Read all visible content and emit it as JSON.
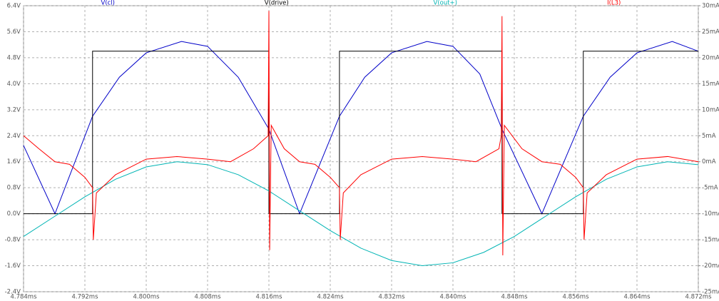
{
  "chart_data": {
    "type": "line",
    "xlim": [
      4.784,
      4.872
    ],
    "xticks": [
      {
        "value": 4.784,
        "label": "4.784ms"
      },
      {
        "value": 4.792,
        "label": "4.792ms"
      },
      {
        "value": 4.8,
        "label": "4.800ms"
      },
      {
        "value": 4.808,
        "label": "4.808ms"
      },
      {
        "value": 4.816,
        "label": "4.816ms"
      },
      {
        "value": 4.824,
        "label": "4.824ms"
      },
      {
        "value": 4.832,
        "label": "4.832ms"
      },
      {
        "value": 4.84,
        "label": "4.840ms"
      },
      {
        "value": 4.848,
        "label": "4.848ms"
      },
      {
        "value": 4.856,
        "label": "4.856ms"
      },
      {
        "value": 4.864,
        "label": "4.864ms"
      },
      {
        "value": 4.872,
        "label": "4.872ms"
      }
    ],
    "ylim": [
      -2.4,
      6.4
    ],
    "yticks": [
      {
        "value": 6.4,
        "label": "6.4V"
      },
      {
        "value": 5.6,
        "label": "5.6V"
      },
      {
        "value": 4.8,
        "label": "4.8V"
      },
      {
        "value": 4.0,
        "label": "4.0V"
      },
      {
        "value": 3.2,
        "label": "3.2V"
      },
      {
        "value": 2.4,
        "label": "2.4V"
      },
      {
        "value": 1.6,
        "label": "1.6V"
      },
      {
        "value": 0.8,
        "label": "0.8V"
      },
      {
        "value": 0,
        "label": "0.0V"
      },
      {
        "value": -0.8,
        "label": "-0.8V"
      },
      {
        "value": -1.6,
        "label": "-1.6V"
      },
      {
        "value": -2.4,
        "label": "-2.4V"
      }
    ],
    "y2lim": [
      -25,
      30
    ],
    "y2ticks": [
      {
        "value": 30,
        "label": "30mA"
      },
      {
        "value": 25,
        "label": "25mA"
      },
      {
        "value": 20,
        "label": "20mA"
      },
      {
        "value": 15,
        "label": "15mA"
      },
      {
        "value": 10,
        "label": "10mA"
      },
      {
        "value": 5,
        "label": "5mA"
      },
      {
        "value": 0,
        "label": "0mA"
      },
      {
        "value": -5,
        "label": "-5mA"
      },
      {
        "value": -10,
        "label": "-10mA"
      },
      {
        "value": -15,
        "label": "-15mA"
      },
      {
        "value": -20,
        "label": "-20mA"
      },
      {
        "value": -25,
        "label": "-25mA"
      }
    ],
    "grid": true,
    "series": [
      {
        "name": "V(cl)",
        "color": "#0000c8",
        "x": [
          4.784,
          4.7881,
          4.793,
          4.7965,
          4.8,
          4.8046,
          4.808,
          4.812,
          4.816,
          4.82,
          4.8252,
          4.8285,
          4.832,
          4.8366,
          4.84,
          4.8435,
          4.8464,
          4.8516,
          4.857,
          4.8605,
          4.864,
          4.8686,
          4.872
        ],
        "values": [
          2.1,
          0,
          3.0,
          4.2,
          4.95,
          5.3,
          5.15,
          4.2,
          2.6,
          0,
          3.0,
          4.2,
          4.95,
          5.3,
          5.15,
          4.3,
          2.6,
          0,
          3.0,
          4.2,
          4.95,
          5.3,
          5.0
        ]
      },
      {
        "name": "V(drive)",
        "color": "#000000",
        "x": [
          4.784,
          4.793,
          4.793,
          4.816,
          4.816,
          4.8252,
          4.8252,
          4.8464,
          4.8464,
          4.857,
          4.857,
          4.872
        ],
        "values": [
          0,
          0,
          5.0,
          5.0,
          0,
          0,
          5.0,
          5.0,
          0,
          0,
          5.0,
          5.0
        ]
      },
      {
        "name": "V(out+)",
        "color": "#00b4b4",
        "x": [
          4.784,
          4.788,
          4.792,
          4.796,
          4.8,
          4.804,
          4.808,
          4.812,
          4.816,
          4.82,
          4.824,
          4.828,
          4.832,
          4.836,
          4.84,
          4.844,
          4.848,
          4.852,
          4.856,
          4.86,
          4.864,
          4.868,
          4.872
        ],
        "values": [
          -0.7,
          -0.09,
          0.52,
          1.06,
          1.44,
          1.6,
          1.51,
          1.2,
          0.7,
          0.09,
          -0.52,
          -1.06,
          -1.44,
          -1.6,
          -1.51,
          -1.19,
          -0.7,
          -0.09,
          0.52,
          1.06,
          1.44,
          1.6,
          1.51
        ]
      },
      {
        "name": "I(L3)",
        "color": "#ff0000",
        "axis": "y2",
        "x": [
          4.784,
          4.786,
          4.7881,
          4.79,
          4.792,
          4.793,
          4.7931,
          4.7935,
          4.796,
          4.8,
          4.804,
          4.808,
          4.811,
          4.814,
          4.8159,
          4.816,
          4.8161,
          4.8163,
          4.818,
          4.82,
          4.822,
          4.824,
          4.8252,
          4.8253,
          4.8257,
          4.828,
          4.832,
          4.836,
          4.84,
          4.843,
          4.846,
          4.8463,
          4.8464,
          4.8465,
          4.8467,
          4.849,
          4.8516,
          4.854,
          4.856,
          4.857,
          4.8571,
          4.8575,
          4.86,
          4.864,
          4.868,
          4.872
        ],
        "values": [
          5,
          2.5,
          0,
          -0.5,
          -3,
          -5,
          -15,
          -6,
          -2.5,
          0.5,
          1,
          0.5,
          0,
          2.5,
          5,
          29,
          -17,
          7,
          2.5,
          0,
          -0.5,
          -3,
          -5,
          -15,
          -6,
          -2.5,
          0.5,
          1,
          0.5,
          0,
          2.5,
          5,
          28,
          -18,
          7,
          2.5,
          0,
          -0.5,
          -3,
          -5,
          -15,
          -6,
          -2.5,
          0.5,
          1,
          0
        ]
      }
    ]
  }
}
